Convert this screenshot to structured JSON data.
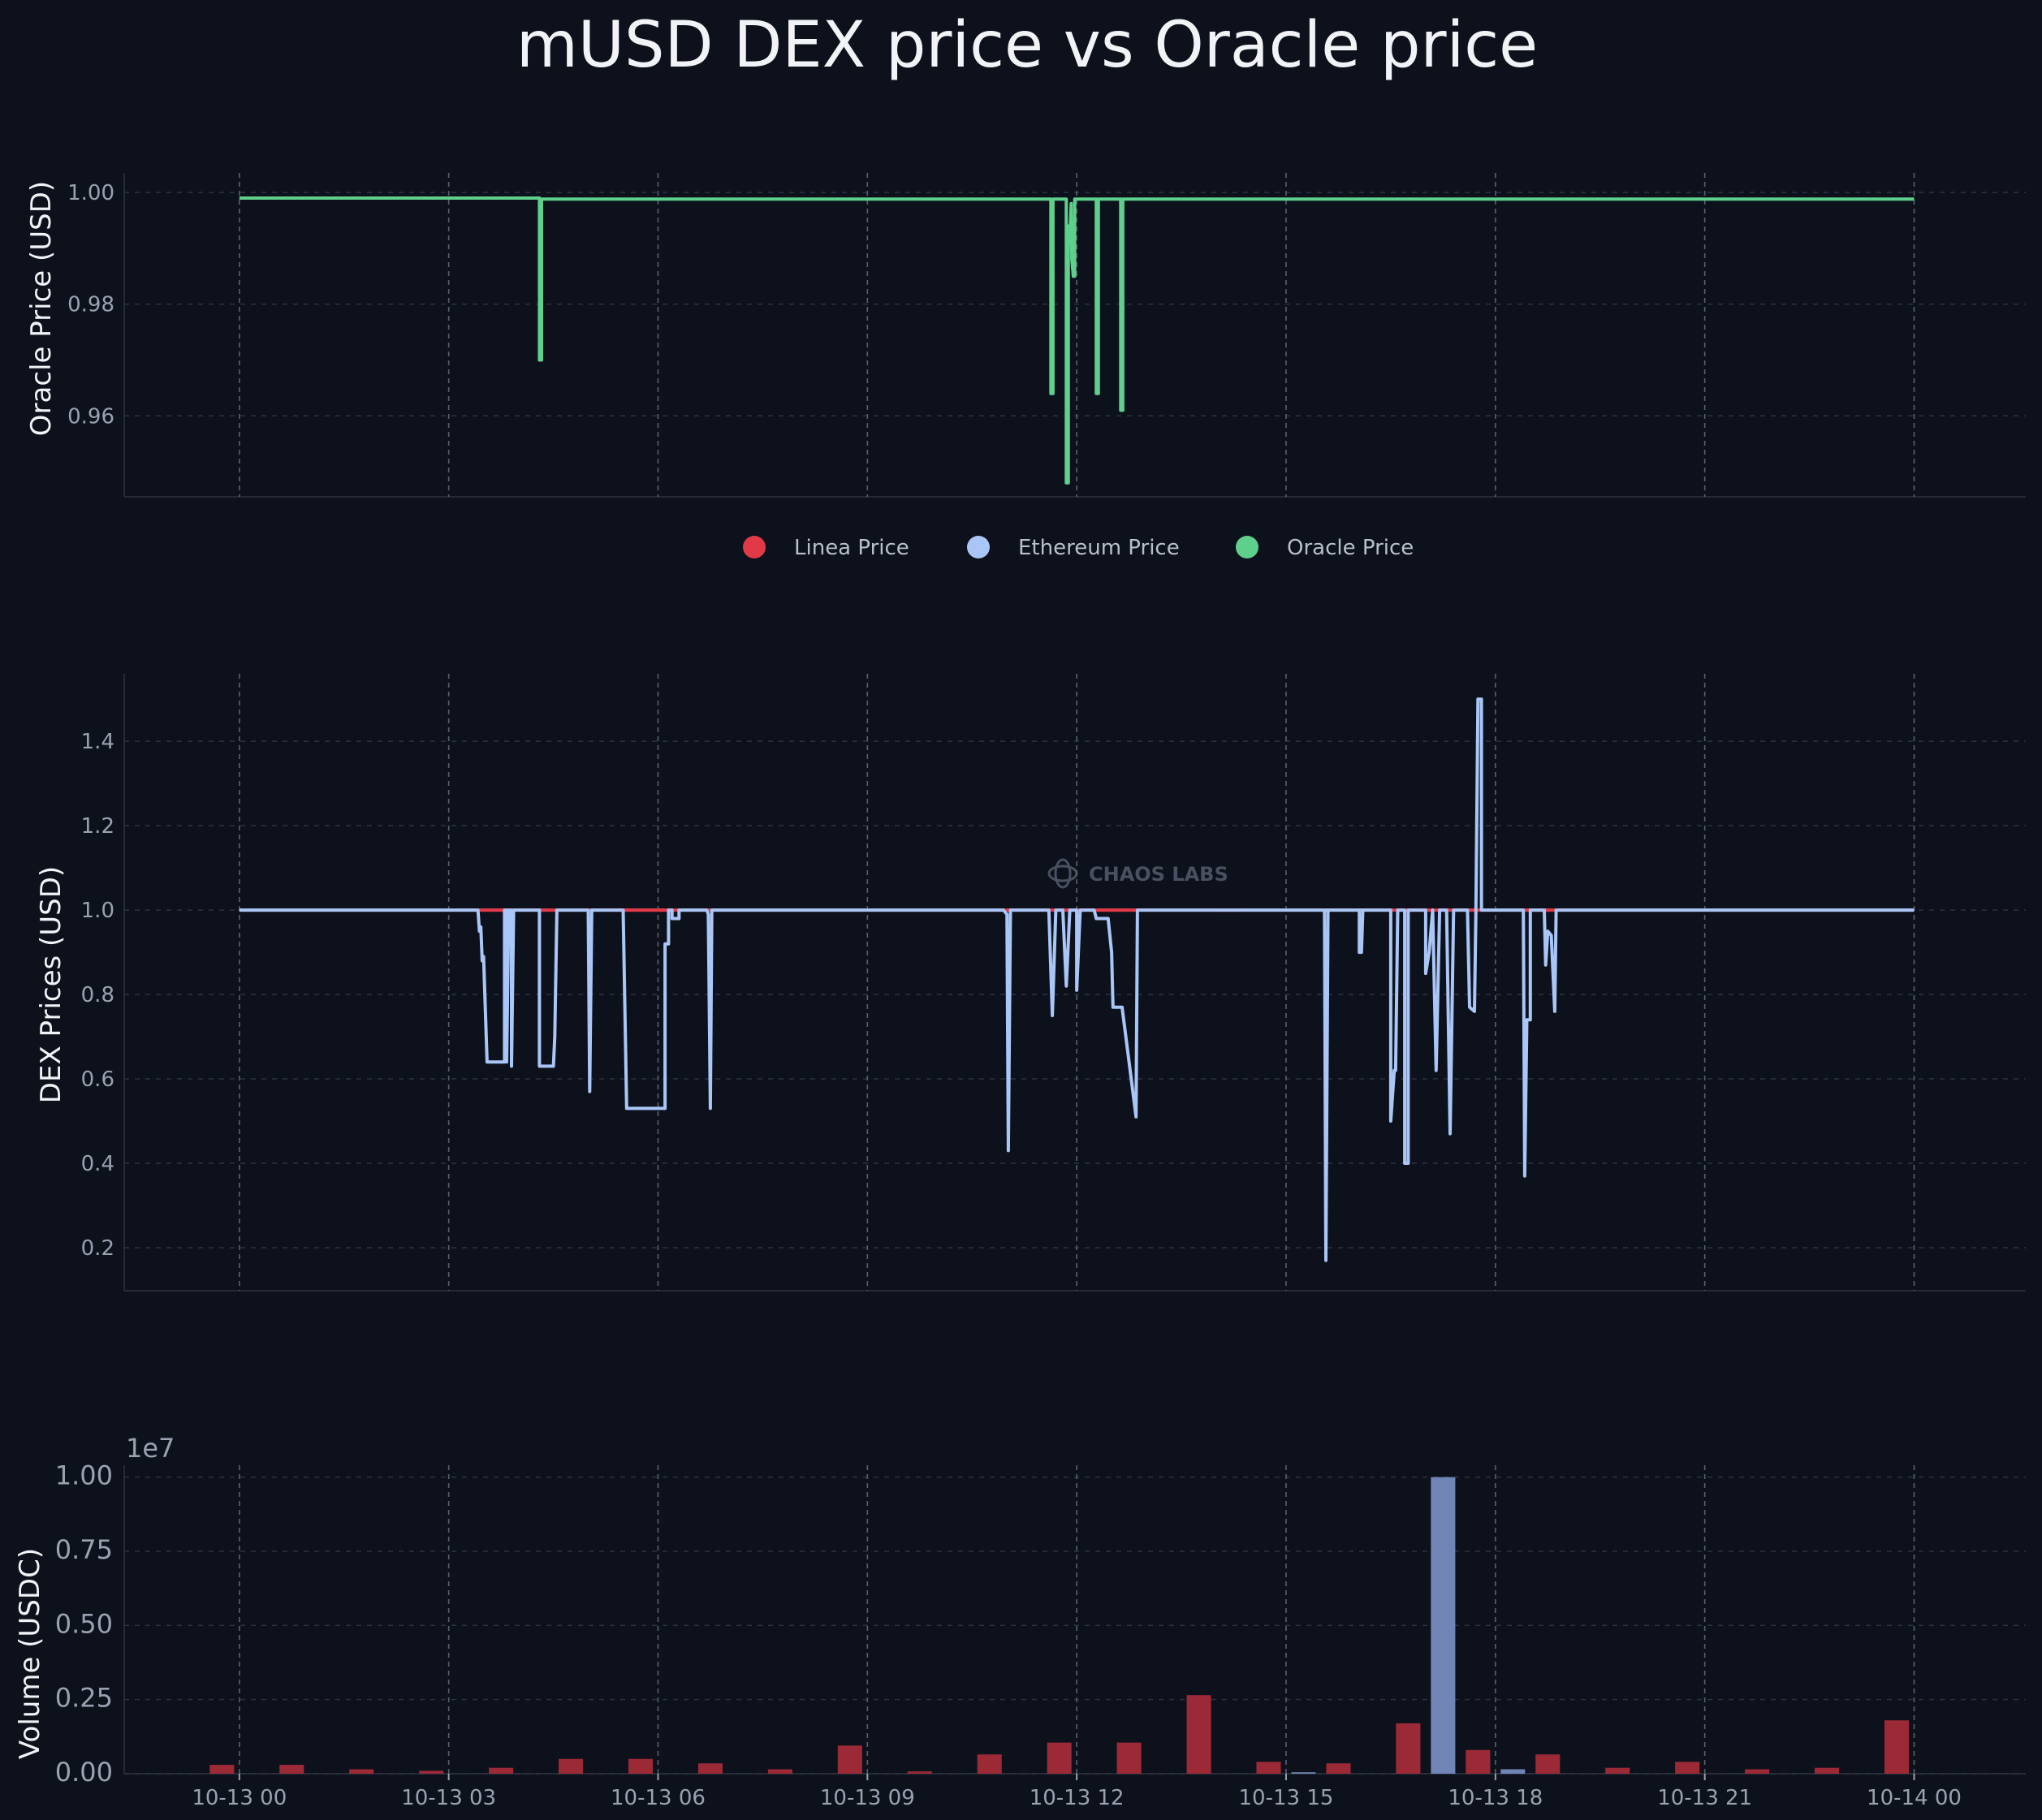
{
  "chart_data": {
    "title": "mUSD DEX price vs Oracle price",
    "watermark": "CHAOS LABS",
    "legend": {
      "placement": "center, between top and middle panels",
      "items": [
        {
          "name": "Linea Price",
          "color": "#e03a48"
        },
        {
          "name": "Ethereum Price",
          "color": "#a9c6f7"
        },
        {
          "name": "Oracle Price",
          "color": "#5fcf8c"
        }
      ]
    },
    "x_ticks": [
      "10-13 00",
      "10-13 03",
      "10-13 06",
      "10-13 09",
      "10-13 12",
      "10-13 15",
      "10-13 18",
      "10-13 21",
      "10-14 00"
    ],
    "x_tick_hours": [
      0,
      3,
      6,
      9,
      12,
      15,
      18,
      21,
      24
    ],
    "xlim_hours": [
      -1.65,
      25.6
    ],
    "panels": [
      {
        "type": "line",
        "ylabel": "Oracle Price (USD)",
        "ylim": [
          0.9455,
          1.0035
        ],
        "yticks": [
          0.96,
          0.98,
          1.0
        ],
        "ytick_labels": [
          "0.96",
          "0.98",
          "1.00"
        ],
        "grid": true,
        "series": [
          {
            "name": "Oracle Price",
            "color": "#5fcf8c",
            "points": [
              [
                0,
                0.999
              ],
              [
                4.3,
                0.999
              ],
              [
                4.3,
                0.97
              ],
              [
                4.33,
                0.97
              ],
              [
                4.33,
                0.9988
              ],
              [
                11.63,
                0.9988
              ],
              [
                11.63,
                0.964
              ],
              [
                11.66,
                0.964
              ],
              [
                11.66,
                0.9988
              ],
              [
                11.85,
                0.9988
              ],
              [
                11.85,
                0.948
              ],
              [
                11.88,
                0.948
              ],
              [
                11.88,
                0.994
              ],
              [
                11.9,
                0.991
              ],
              [
                11.92,
                0.998
              ],
              [
                11.93,
                0.988
              ],
              [
                11.95,
                0.985
              ],
              [
                11.97,
                0.985
              ],
              [
                11.97,
                0.9988
              ],
              [
                12.28,
                0.9988
              ],
              [
                12.28,
                0.964
              ],
              [
                12.31,
                0.964
              ],
              [
                12.31,
                0.9988
              ],
              [
                12.63,
                0.9988
              ],
              [
                12.63,
                0.961
              ],
              [
                12.66,
                0.961
              ],
              [
                12.66,
                0.9988
              ],
              [
                24,
                0.9988
              ]
            ]
          }
        ]
      },
      {
        "type": "line",
        "ylabel": "DEX Prices (USD)",
        "ylim": [
          0.098,
          1.56
        ],
        "yticks": [
          0.2,
          0.4,
          0.6,
          0.8,
          1.0,
          1.2,
          1.4
        ],
        "ytick_labels": [
          "0.2",
          "0.4",
          "0.6",
          "0.8",
          "1.0",
          "1.2",
          "1.4"
        ],
        "grid": true,
        "series": [
          {
            "name": "Linea Price",
            "color": "#e03a48",
            "segments": [
              [
                3.45,
                3.8
              ],
              [
                4.25,
                4.45
              ],
              [
                5.3,
                6.1
              ],
              [
                12.3,
                12.85
              ],
              [
                13.9,
                14.35
              ],
              [
                16.75,
                16.95
              ],
              [
                17.5,
                17.7
              ],
              [
                18.45,
                18.8
              ]
            ],
            "points": [
              [
                0,
                1.0
              ],
              [
                24,
                1.0
              ]
            ]
          },
          {
            "name": "Ethereum Price",
            "color": "#a9c6f7",
            "points": [
              [
                0,
                1.0
              ],
              [
                3.42,
                1.0
              ],
              [
                3.44,
                0.95
              ],
              [
                3.46,
                0.96
              ],
              [
                3.48,
                0.88
              ],
              [
                3.5,
                0.89
              ],
              [
                3.55,
                0.64
              ],
              [
                3.8,
                0.64
              ],
              [
                3.8,
                1.0
              ],
              [
                3.83,
                1.0
              ],
              [
                3.83,
                0.64
              ],
              [
                3.86,
                1.0
              ],
              [
                3.9,
                1.0
              ],
              [
                3.9,
                0.63
              ],
              [
                3.93,
                1.0
              ],
              [
                4.3,
                1.0
              ],
              [
                4.3,
                0.63
              ],
              [
                4.5,
                0.63
              ],
              [
                4.52,
                0.7
              ],
              [
                4.55,
                1.0
              ],
              [
                5.0,
                1.0
              ],
              [
                5.02,
                0.57
              ],
              [
                5.05,
                1.0
              ],
              [
                5.5,
                1.0
              ],
              [
                5.55,
                0.53
              ],
              [
                6.1,
                0.53
              ],
              [
                6.1,
                0.92
              ],
              [
                6.15,
                0.92
              ],
              [
                6.15,
                1.0
              ],
              [
                6.2,
                1.0
              ],
              [
                6.2,
                0.98
              ],
              [
                6.3,
                0.98
              ],
              [
                6.3,
                1.0
              ],
              [
                6.7,
                1.0
              ],
              [
                6.72,
                0.99
              ],
              [
                6.75,
                0.53
              ],
              [
                6.77,
                1.0
              ],
              [
                10.95,
                1.0
              ],
              [
                11.0,
                0.99
              ],
              [
                11.02,
                0.43
              ],
              [
                11.05,
                1.0
              ],
              [
                11.6,
                1.0
              ],
              [
                11.65,
                0.75
              ],
              [
                11.7,
                1.0
              ],
              [
                11.8,
                1.0
              ],
              [
                11.85,
                0.82
              ],
              [
                11.9,
                1.0
              ],
              [
                12.0,
                1.0
              ],
              [
                12.0,
                0.81
              ],
              [
                12.05,
                1.0
              ],
              [
                12.25,
                1.0
              ],
              [
                12.28,
                0.98
              ],
              [
                12.45,
                0.98
              ],
              [
                12.5,
                0.9
              ],
              [
                12.52,
                0.77
              ],
              [
                12.65,
                0.77
              ],
              [
                12.85,
                0.51
              ],
              [
                12.87,
                1.0
              ],
              [
                16.05,
                1.0
              ],
              [
                16.05,
                0.9
              ],
              [
                16.08,
                0.9
              ],
              [
                16.1,
                1.0
              ],
              [
                14.5,
                1.0
              ],
              [
                15.55,
                1.0
              ],
              [
                15.57,
                0.17
              ],
              [
                15.6,
                1.0
              ],
              [
                16.5,
                1.0
              ],
              [
                16.5,
                0.5
              ],
              [
                16.55,
                0.62
              ],
              [
                16.57,
                0.62
              ],
              [
                16.6,
                1.0
              ],
              [
                16.7,
                1.0
              ],
              [
                16.7,
                0.4
              ],
              [
                16.75,
                0.4
              ],
              [
                16.75,
                1.0
              ],
              [
                17.0,
                1.0
              ],
              [
                17.0,
                0.85
              ],
              [
                17.05,
                0.9
              ],
              [
                17.1,
                1.0
              ],
              [
                17.15,
                0.62
              ],
              [
                17.2,
                1.0
              ],
              [
                17.3,
                1.0
              ],
              [
                17.35,
                0.47
              ],
              [
                17.4,
                1.0
              ],
              [
                17.6,
                1.0
              ],
              [
                17.63,
                0.77
              ],
              [
                17.7,
                0.76
              ],
              [
                17.72,
                1.0
              ],
              [
                17.75,
                1.5
              ],
              [
                17.8,
                1.5
              ],
              [
                17.8,
                1.0
              ],
              [
                18.4,
                1.0
              ],
              [
                18.42,
                0.37
              ],
              [
                18.45,
                0.74
              ],
              [
                18.5,
                0.74
              ],
              [
                18.5,
                1.0
              ],
              [
                18.7,
                1.0
              ],
              [
                18.72,
                0.87
              ],
              [
                18.75,
                0.95
              ],
              [
                18.8,
                0.94
              ],
              [
                18.85,
                0.76
              ],
              [
                18.87,
                1.0
              ],
              [
                24,
                1.0
              ]
            ]
          }
        ]
      },
      {
        "type": "bar",
        "ylabel": "Volume (USDC)",
        "offset_text": "1e7",
        "ylim": [
          0,
          10400000.0
        ],
        "yticks": [
          0,
          2500000,
          5000000,
          7500000,
          10000000
        ],
        "ytick_labels": [
          "0.00",
          "0.25",
          "0.50",
          "0.75",
          "1.00"
        ],
        "grid": true,
        "bar_width_hours": 0.35,
        "series": [
          {
            "name": "Linea Price",
            "color": "#9b2a36",
            "x": [
              -0.25,
              0.75,
              1.75,
              2.75,
              3.75,
              4.75,
              5.75,
              6.75,
              7.75,
              8.75,
              9.75,
              10.75,
              11.75,
              12.75,
              13.75,
              14.75,
              15.75,
              16.75,
              17.75,
              18.75,
              19.75,
              20.75,
              21.75,
              22.75,
              23.75
            ],
            "values": [
              300000,
              300000,
              150000,
              100000,
              200000,
              500000,
              500000,
              350000,
              150000,
              950000,
              80000,
              650000,
              1050000,
              1050000,
              2650000,
              400000,
              350000,
              1700000,
              800000,
              650000,
              200000,
              400000,
              150000,
              200000,
              1800000
            ]
          },
          {
            "name": "Ethereum Price",
            "color": "#7085b5",
            "x": [
              15.25,
              17.25,
              18.25
            ],
            "values": [
              50000,
              10000000,
              150000
            ]
          }
        ]
      }
    ]
  }
}
